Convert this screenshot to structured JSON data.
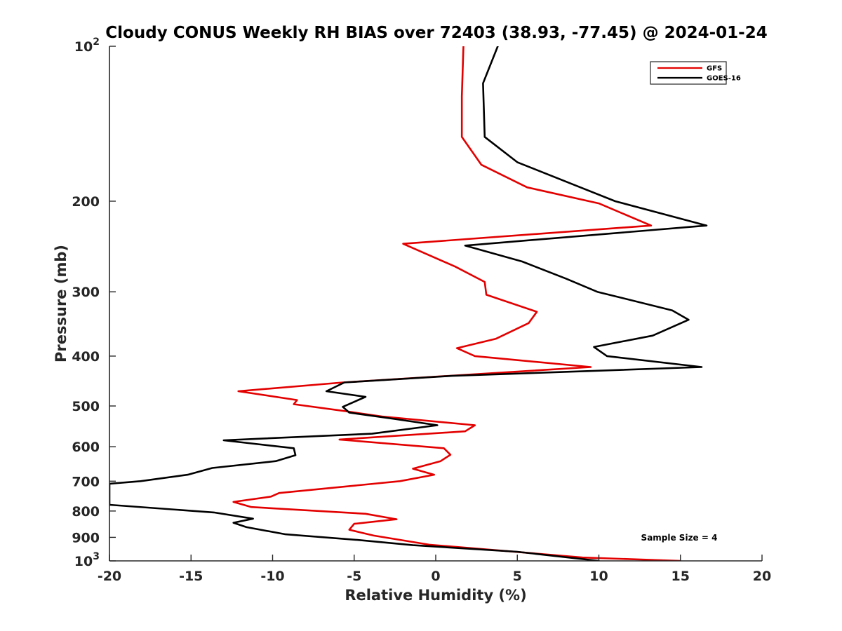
{
  "chart_data": {
    "type": "line",
    "title": "Cloudy CONUS Weekly RH BIAS over 72403 (38.93, -77.45) @ 2024-01-24",
    "xlabel": "Relative Humidity (%)",
    "ylabel": "Pressure (mb)",
    "xlim": [
      -20,
      20
    ],
    "ylim": [
      100,
      1000
    ],
    "y_scale": "log",
    "y_reversed": true,
    "grid": false,
    "x_ticks": [
      "-20",
      "-15",
      "-10",
      "-5",
      "0",
      "5",
      "10",
      "15",
      "20"
    ],
    "y_ticks": [
      {
        "value": 100,
        "label": "10",
        "sup": "2"
      },
      {
        "value": 200,
        "label": "200",
        "sup": ""
      },
      {
        "value": 300,
        "label": "300",
        "sup": ""
      },
      {
        "value": 400,
        "label": "400",
        "sup": ""
      },
      {
        "value": 500,
        "label": "500",
        "sup": ""
      },
      {
        "value": 600,
        "label": "600",
        "sup": ""
      },
      {
        "value": 700,
        "label": "700",
        "sup": ""
      },
      {
        "value": 800,
        "label": "800",
        "sup": ""
      },
      {
        "value": 900,
        "label": "900",
        "sup": ""
      },
      {
        "value": 1000,
        "label": "10",
        "sup": "3"
      }
    ],
    "legend_position": "top-right",
    "annotation": "Sample Size = 4",
    "series": [
      {
        "name": "GFS",
        "color": "#e30000",
        "points": [
          [
            1.7,
            100
          ],
          [
            1.6,
            125
          ],
          [
            1.6,
            150
          ],
          [
            2.8,
            170
          ],
          [
            5.6,
            188
          ],
          [
            10.0,
            202
          ],
          [
            13.2,
            223
          ],
          [
            -2.0,
            242
          ],
          [
            1.2,
            268
          ],
          [
            3.0,
            287
          ],
          [
            3.1,
            304
          ],
          [
            6.2,
            328
          ],
          [
            5.7,
            345
          ],
          [
            3.7,
            370
          ],
          [
            1.3,
            386
          ],
          [
            2.4,
            400
          ],
          [
            9.5,
            420
          ],
          [
            -5.7,
            450
          ],
          [
            -12.1,
            468
          ],
          [
            -8.5,
            487
          ],
          [
            -8.7,
            496
          ],
          [
            -5.5,
            512
          ],
          [
            -3.3,
            524
          ],
          [
            2.4,
            545
          ],
          [
            1.8,
            560
          ],
          [
            -5.9,
            581
          ],
          [
            0.5,
            604
          ],
          [
            0.9,
            622
          ],
          [
            0.3,
            640
          ],
          [
            -1.4,
            662
          ],
          [
            -0.1,
            680
          ],
          [
            -2.2,
            700
          ],
          [
            -9.6,
            738
          ],
          [
            -10.1,
            750
          ],
          [
            -12.4,
            768
          ],
          [
            -11.3,
            786
          ],
          [
            -4.3,
            810
          ],
          [
            -2.4,
            830
          ],
          [
            -5.0,
            847
          ],
          [
            -5.3,
            870
          ],
          [
            -3.8,
            893
          ],
          [
            -0.4,
            930
          ],
          [
            4.5,
            958
          ],
          [
            9.0,
            985
          ],
          [
            15.0,
            1000
          ]
        ]
      },
      {
        "name": "GOES-16",
        "color": "#000000",
        "points": [
          [
            3.8,
            100
          ],
          [
            2.9,
            118
          ],
          [
            3.0,
            150
          ],
          [
            5.0,
            168
          ],
          [
            8.5,
            186
          ],
          [
            11.0,
            200
          ],
          [
            16.6,
            223
          ],
          [
            1.8,
            244
          ],
          [
            5.3,
            262
          ],
          [
            8.0,
            283
          ],
          [
            9.9,
            300
          ],
          [
            14.5,
            326
          ],
          [
            15.5,
            340
          ],
          [
            13.3,
            365
          ],
          [
            9.7,
            384
          ],
          [
            10.5,
            400
          ],
          [
            16.3,
            420
          ],
          [
            1.0,
            437
          ],
          [
            -5.6,
            450
          ],
          [
            -6.7,
            468
          ],
          [
            -4.3,
            480
          ],
          [
            -5.7,
            502
          ],
          [
            -5.3,
            515
          ],
          [
            -2.5,
            530
          ],
          [
            0.1,
            545
          ],
          [
            -3.9,
            566
          ],
          [
            -13.0,
            583
          ],
          [
            -8.7,
            604
          ],
          [
            -8.6,
            623
          ],
          [
            -9.8,
            640
          ],
          [
            -13.7,
            660
          ],
          [
            -15.2,
            680
          ],
          [
            -18.1,
            700
          ],
          [
            -20.0,
            708
          ],
          [
            -20.0,
            778
          ],
          [
            -13.6,
            805
          ],
          [
            -11.2,
            828
          ],
          [
            -12.4,
            843
          ],
          [
            -11.6,
            860
          ],
          [
            -9.2,
            888
          ],
          [
            -4.9,
            910
          ],
          [
            -1.4,
            932
          ],
          [
            5.0,
            960
          ],
          [
            10.0,
            1000
          ]
        ]
      }
    ]
  }
}
